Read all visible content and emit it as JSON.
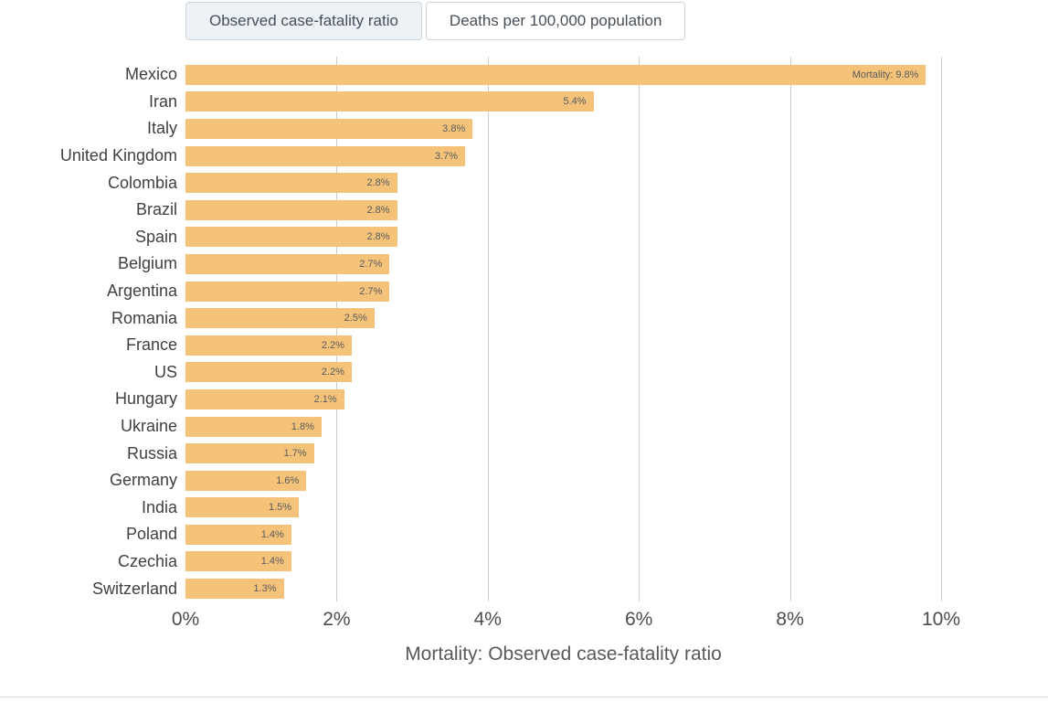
{
  "tabs": [
    {
      "label": "Observed case-fatality ratio",
      "selected": true
    },
    {
      "label": "Deaths per 100,000 population",
      "selected": false
    }
  ],
  "chart_data": {
    "type": "bar",
    "orientation": "horizontal",
    "title": "",
    "xlabel": "Mortality: Observed case-fatality ratio",
    "ylabel": "",
    "xlim": [
      0,
      10
    ],
    "x_ticks": [
      "0%",
      "2%",
      "4%",
      "6%",
      "8%",
      "10%"
    ],
    "grid": true,
    "legend": "none",
    "bar_color": "#f4c379",
    "grid_color": "#cccccc",
    "categories": [
      "Mexico",
      "Iran",
      "Italy",
      "United Kingdom",
      "Colombia",
      "Brazil",
      "Spain",
      "Belgium",
      "Argentina",
      "Romania",
      "France",
      "US",
      "Hungary",
      "Ukraine",
      "Russia",
      "Germany",
      "India",
      "Poland",
      "Czechia",
      "Switzerland"
    ],
    "values": [
      9.8,
      5.4,
      3.8,
      3.7,
      2.8,
      2.8,
      2.8,
      2.7,
      2.7,
      2.5,
      2.2,
      2.2,
      2.1,
      1.8,
      1.7,
      1.6,
      1.5,
      1.4,
      1.4,
      1.3
    ],
    "bar_labels": [
      "Mortality: 9.8%",
      "5.4%",
      "3.8%",
      "3.7%",
      "2.8%",
      "2.8%",
      "2.8%",
      "2.7%",
      "2.7%",
      "2.5%",
      "2.2%",
      "2.2%",
      "2.1%",
      "1.8%",
      "1.7%",
      "1.6%",
      "1.5%",
      "1.4%",
      "1.4%",
      "1.3%"
    ]
  }
}
